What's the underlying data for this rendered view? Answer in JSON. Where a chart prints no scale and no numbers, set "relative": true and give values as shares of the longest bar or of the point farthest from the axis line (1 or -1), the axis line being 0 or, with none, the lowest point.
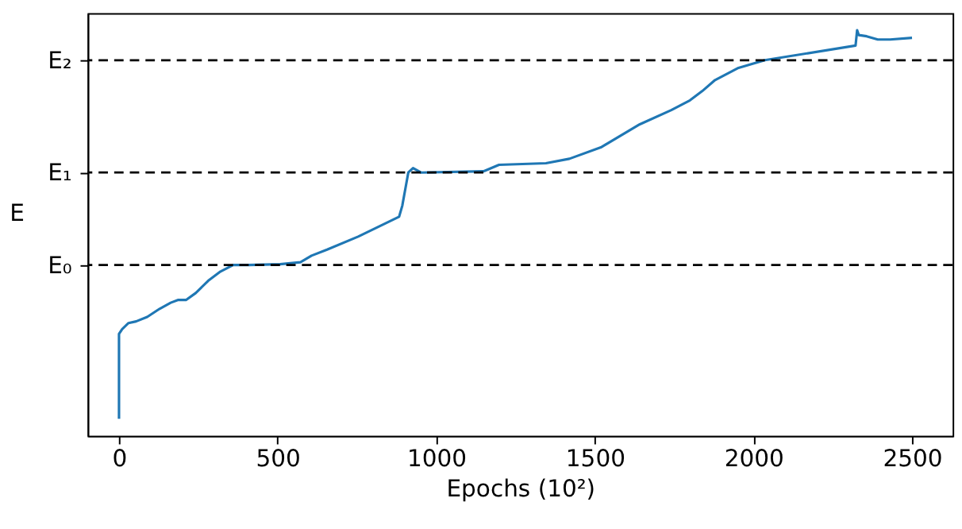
{
  "chart_data": {
    "type": "line",
    "relative": true,
    "xlabel": "Epochs (10²)",
    "ylabel": "E",
    "xlim": [
      -99,
      2628
    ],
    "xticks": [
      0,
      500,
      1000,
      1500,
      2000,
      2500
    ],
    "grid": false,
    "line_style": "solid",
    "series": [
      {
        "color": "#1f77b4",
        "x": [
          0,
          0,
          10,
          30,
          54,
          89,
          128,
          163,
          187,
          212,
          242,
          281,
          320,
          360,
          409,
          508,
          572,
          607,
          656,
          754,
          883,
          893,
          912,
          927,
          952,
          1149,
          1198,
          1346,
          1420,
          1519,
          1642,
          1741,
          1800,
          1839,
          1879,
          1953,
          2036,
          2322,
          2327,
          2332,
          2357,
          2392,
          2431,
          2500
        ],
        "values": [
          0.042,
          0.251,
          0.263,
          0.278,
          0.282,
          0.293,
          0.313,
          0.328,
          0.335,
          0.335,
          0.352,
          0.382,
          0.405,
          0.421,
          0.421,
          0.423,
          0.428,
          0.444,
          0.459,
          0.491,
          0.54,
          0.567,
          0.649,
          0.66,
          0.649,
          0.652,
          0.668,
          0.672,
          0.683,
          0.711,
          0.768,
          0.803,
          0.827,
          0.85,
          0.877,
          0.907,
          0.926,
          0.962,
          1.0,
          0.988,
          0.985,
          0.977,
          0.977,
          0.981
        ]
      }
    ],
    "ref_lines": [
      {
        "axis": "y",
        "value": 0.421,
        "label": "E₀",
        "color": "#000000",
        "line_style": "dashed"
      },
      {
        "axis": "y",
        "value": 0.649,
        "label": "E₁",
        "color": "#000000",
        "line_style": "dashed"
      },
      {
        "axis": "y",
        "value": 0.926,
        "label": "E₂",
        "color": "#000000",
        "line_style": "dashed"
      }
    ]
  }
}
